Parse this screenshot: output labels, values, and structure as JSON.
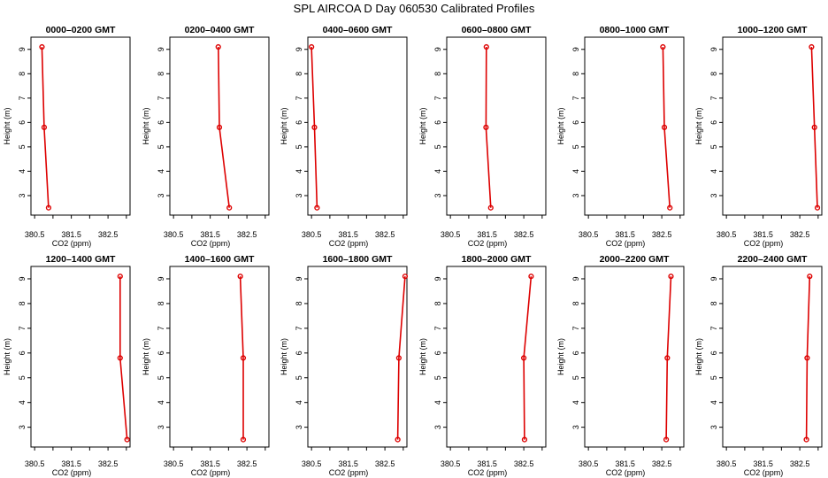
{
  "figure": {
    "title": "SPL AIRCOA D  Day 060530  Calibrated Profiles"
  },
  "style": {
    "series_color": "#dd0000",
    "axis_color": "#000000"
  },
  "chart_data": [
    {
      "type": "line",
      "title": "0000–0200 GMT",
      "xlabel": "CO2 (ppm)",
      "ylabel": "Height (m)",
      "xlim": [
        380.4,
        383.1
      ],
      "ylim": [
        2.2,
        9.5
      ],
      "xticks": [
        380.5,
        381,
        381.5,
        382,
        382.5,
        383
      ],
      "xtick_labels": [
        "380.5",
        "",
        "381.5",
        "",
        "382.5",
        ""
      ],
      "yticks": [
        3,
        4,
        5,
        6,
        7,
        8,
        9
      ],
      "ytick_labels": [
        "3",
        "4",
        "5",
        "6",
        "7",
        "8",
        "9"
      ],
      "series": [
        {
          "x": [
            380.88,
            380.76,
            380.7
          ],
          "y": [
            2.5,
            5.8,
            9.1
          ]
        }
      ]
    },
    {
      "type": "line",
      "title": "0200–0400 GMT",
      "xlabel": "CO2 (ppm)",
      "ylabel": "Height (m)",
      "xlim": [
        380.4,
        383.1
      ],
      "ylim": [
        2.2,
        9.5
      ],
      "xticks": [
        380.5,
        381,
        381.5,
        382,
        382.5,
        383
      ],
      "xtick_labels": [
        "380.5",
        "",
        "381.5",
        "",
        "382.5",
        ""
      ],
      "yticks": [
        3,
        4,
        5,
        6,
        7,
        8,
        9
      ],
      "ytick_labels": [
        "3",
        "4",
        "5",
        "6",
        "7",
        "8",
        "9"
      ],
      "series": [
        {
          "x": [
            382.02,
            381.75,
            381.72
          ],
          "y": [
            2.5,
            5.8,
            9.1
          ]
        }
      ]
    },
    {
      "type": "line",
      "title": "0400–0600 GMT",
      "xlabel": "CO2 (ppm)",
      "ylabel": "Height (m)",
      "xlim": [
        380.4,
        383.1
      ],
      "ylim": [
        2.2,
        9.5
      ],
      "xticks": [
        380.5,
        381,
        381.5,
        382,
        382.5,
        383
      ],
      "xtick_labels": [
        "380.5",
        "",
        "381.5",
        "",
        "382.5",
        ""
      ],
      "yticks": [
        3,
        4,
        5,
        6,
        7,
        8,
        9
      ],
      "ytick_labels": [
        "3",
        "4",
        "5",
        "6",
        "7",
        "8",
        "9"
      ],
      "series": [
        {
          "x": [
            380.65,
            380.58,
            380.5
          ],
          "y": [
            2.5,
            5.8,
            9.1
          ]
        }
      ]
    },
    {
      "type": "line",
      "title": "0600–0800 GMT",
      "xlabel": "CO2 (ppm)",
      "ylabel": "Height (m)",
      "xlim": [
        380.4,
        383.1
      ],
      "ylim": [
        2.2,
        9.5
      ],
      "xticks": [
        380.5,
        381,
        381.5,
        382,
        382.5,
        383
      ],
      "xtick_labels": [
        "380.5",
        "",
        "381.5",
        "",
        "382.5",
        ""
      ],
      "yticks": [
        3,
        4,
        5,
        6,
        7,
        8,
        9
      ],
      "ytick_labels": [
        "3",
        "4",
        "5",
        "6",
        "7",
        "8",
        "9"
      ],
      "series": [
        {
          "x": [
            381.6,
            381.47,
            381.48
          ],
          "y": [
            2.5,
            5.8,
            9.1
          ]
        }
      ]
    },
    {
      "type": "line",
      "title": "0800–1000 GMT",
      "xlabel": "CO2 (ppm)",
      "ylabel": "Height (m)",
      "xlim": [
        380.4,
        383.1
      ],
      "ylim": [
        2.2,
        9.5
      ],
      "xticks": [
        380.5,
        381,
        381.5,
        382,
        382.5,
        383
      ],
      "xtick_labels": [
        "380.5",
        "",
        "381.5",
        "",
        "382.5",
        ""
      ],
      "yticks": [
        3,
        4,
        5,
        6,
        7,
        8,
        9
      ],
      "ytick_labels": [
        "3",
        "4",
        "5",
        "6",
        "7",
        "8",
        "9"
      ],
      "series": [
        {
          "x": [
            382.72,
            382.57,
            382.53
          ],
          "y": [
            2.5,
            5.8,
            9.1
          ]
        }
      ]
    },
    {
      "type": "line",
      "title": "1000–1200 GMT",
      "xlabel": "CO2 (ppm)",
      "ylabel": "Height (m)",
      "xlim": [
        380.4,
        383.1
      ],
      "ylim": [
        2.2,
        9.5
      ],
      "xticks": [
        380.5,
        381,
        381.5,
        382,
        382.5,
        383
      ],
      "xtick_labels": [
        "380.5",
        "",
        "381.5",
        "",
        "382.5",
        ""
      ],
      "yticks": [
        3,
        4,
        5,
        6,
        7,
        8,
        9
      ],
      "ytick_labels": [
        "3",
        "4",
        "5",
        "6",
        "7",
        "8",
        "9"
      ],
      "series": [
        {
          "x": [
            382.98,
            382.9,
            382.82
          ],
          "y": [
            2.5,
            5.8,
            9.1
          ]
        }
      ]
    },
    {
      "type": "line",
      "title": "1200–1400 GMT",
      "xlabel": "CO2 (ppm)",
      "ylabel": "Height (m)",
      "xlim": [
        380.4,
        383.1
      ],
      "ylim": [
        2.2,
        9.5
      ],
      "xticks": [
        380.5,
        381,
        381.5,
        382,
        382.5,
        383
      ],
      "xtick_labels": [
        "380.5",
        "",
        "381.5",
        "",
        "382.5",
        ""
      ],
      "yticks": [
        3,
        4,
        5,
        6,
        7,
        8,
        9
      ],
      "ytick_labels": [
        "3",
        "4",
        "5",
        "6",
        "7",
        "8",
        "9"
      ],
      "series": [
        {
          "x": [
            383.02,
            382.83,
            382.83
          ],
          "y": [
            2.5,
            5.8,
            9.1
          ]
        }
      ]
    },
    {
      "type": "line",
      "title": "1400–1600 GMT",
      "xlabel": "CO2 (ppm)",
      "ylabel": "Height (m)",
      "xlim": [
        380.4,
        383.1
      ],
      "ylim": [
        2.2,
        9.5
      ],
      "xticks": [
        380.5,
        381,
        381.5,
        382,
        382.5,
        383
      ],
      "xtick_labels": [
        "380.5",
        "",
        "381.5",
        "",
        "382.5",
        ""
      ],
      "yticks": [
        3,
        4,
        5,
        6,
        7,
        8,
        9
      ],
      "ytick_labels": [
        "3",
        "4",
        "5",
        "6",
        "7",
        "8",
        "9"
      ],
      "series": [
        {
          "x": [
            382.4,
            382.4,
            382.32
          ],
          "y": [
            2.5,
            5.8,
            9.1
          ]
        }
      ]
    },
    {
      "type": "line",
      "title": "1600–1800 GMT",
      "xlabel": "CO2 (ppm)",
      "ylabel": "Height (m)",
      "xlim": [
        380.4,
        383.1
      ],
      "ylim": [
        2.2,
        9.5
      ],
      "xticks": [
        380.5,
        381,
        381.5,
        382,
        382.5,
        383
      ],
      "xtick_labels": [
        "380.5",
        "",
        "381.5",
        "",
        "382.5",
        ""
      ],
      "yticks": [
        3,
        4,
        5,
        6,
        7,
        8,
        9
      ],
      "ytick_labels": [
        "3",
        "4",
        "5",
        "6",
        "7",
        "8",
        "9"
      ],
      "series": [
        {
          "x": [
            382.85,
            382.88,
            383.05
          ],
          "y": [
            2.5,
            5.8,
            9.1
          ]
        }
      ]
    },
    {
      "type": "line",
      "title": "1800–2000 GMT",
      "xlabel": "CO2 (ppm)",
      "ylabel": "Height (m)",
      "xlim": [
        380.4,
        383.1
      ],
      "ylim": [
        2.2,
        9.5
      ],
      "xticks": [
        380.5,
        381,
        381.5,
        382,
        382.5,
        383
      ],
      "xtick_labels": [
        "380.5",
        "",
        "381.5",
        "",
        "382.5",
        ""
      ],
      "yticks": [
        3,
        4,
        5,
        6,
        7,
        8,
        9
      ],
      "ytick_labels": [
        "3",
        "4",
        "5",
        "6",
        "7",
        "8",
        "9"
      ],
      "series": [
        {
          "x": [
            382.52,
            382.5,
            382.7
          ],
          "y": [
            2.5,
            5.8,
            9.1
          ]
        }
      ]
    },
    {
      "type": "line",
      "title": "2000–2200 GMT",
      "xlabel": "CO2 (ppm)",
      "ylabel": "Height (m)",
      "xlim": [
        380.4,
        383.1
      ],
      "ylim": [
        2.2,
        9.5
      ],
      "xticks": [
        380.5,
        381,
        381.5,
        382,
        382.5,
        383
      ],
      "xtick_labels": [
        "380.5",
        "",
        "381.5",
        "",
        "382.5",
        ""
      ],
      "yticks": [
        3,
        4,
        5,
        6,
        7,
        8,
        9
      ],
      "ytick_labels": [
        "3",
        "4",
        "5",
        "6",
        "7",
        "8",
        "9"
      ],
      "series": [
        {
          "x": [
            382.62,
            382.65,
            382.75
          ],
          "y": [
            2.5,
            5.8,
            9.1
          ]
        }
      ]
    },
    {
      "type": "line",
      "title": "2200–2400 GMT",
      "xlabel": "CO2 (ppm)",
      "ylabel": "Height (m)",
      "xlim": [
        380.4,
        383.1
      ],
      "ylim": [
        2.2,
        9.5
      ],
      "xticks": [
        380.5,
        381,
        381.5,
        382,
        382.5,
        383
      ],
      "xtick_labels": [
        "380.5",
        "",
        "381.5",
        "",
        "382.5",
        ""
      ],
      "yticks": [
        3,
        4,
        5,
        6,
        7,
        8,
        9
      ],
      "ytick_labels": [
        "3",
        "4",
        "5",
        "6",
        "7",
        "8",
        "9"
      ],
      "series": [
        {
          "x": [
            382.68,
            382.7,
            382.77
          ],
          "y": [
            2.5,
            5.8,
            9.1
          ]
        }
      ]
    }
  ]
}
